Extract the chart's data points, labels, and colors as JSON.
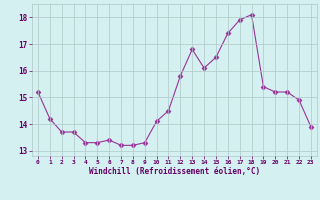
{
  "x": [
    0,
    1,
    2,
    3,
    4,
    5,
    6,
    7,
    8,
    9,
    10,
    11,
    12,
    13,
    14,
    15,
    16,
    17,
    18,
    19,
    20,
    21,
    22,
    23
  ],
  "y": [
    15.2,
    14.2,
    13.7,
    13.7,
    13.3,
    13.3,
    13.4,
    13.2,
    13.2,
    13.3,
    14.1,
    14.5,
    15.8,
    16.8,
    16.1,
    16.5,
    17.4,
    17.9,
    18.1,
    15.4,
    15.2,
    15.2,
    14.9,
    13.9
  ],
  "line_color": "#993399",
  "marker": "D",
  "marker_size": 2.5,
  "bg_color": "#d4f0f0",
  "grid_color": "#b0c8c8",
  "xlabel": "Windchill (Refroidissement éolien,°C)",
  "xlabel_color": "#660066",
  "tick_color": "#660066",
  "ylim": [
    12.8,
    18.5
  ],
  "xlim": [
    -0.5,
    23.5
  ],
  "yticks": [
    13,
    14,
    15,
    16,
    17,
    18
  ],
  "xticks": [
    0,
    1,
    2,
    3,
    4,
    5,
    6,
    7,
    8,
    9,
    10,
    11,
    12,
    13,
    14,
    15,
    16,
    17,
    18,
    19,
    20,
    21,
    22,
    23
  ]
}
